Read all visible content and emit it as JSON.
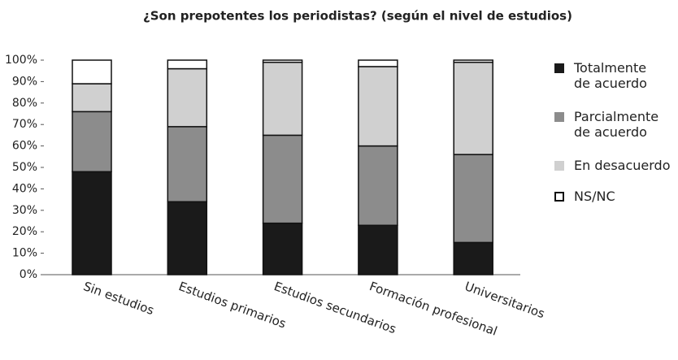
{
  "chart_data": {
    "type": "stacked_bar",
    "title": "¿Son prepotentes los periodistas? (según el nivel de estudios)",
    "categories": [
      "Sin estudios",
      "Estudios primarios",
      "Estudios secundarios",
      "Formación profesional",
      "Universitarios"
    ],
    "series": [
      {
        "name": "Totalmente\nde acuerdo",
        "color": "#1a1a1a",
        "values": [
          48,
          34,
          24,
          23,
          15
        ]
      },
      {
        "name": "Parcialmente\nde acuerdo",
        "color": "#8c8c8c",
        "values": [
          28,
          35,
          41,
          37,
          41
        ]
      },
      {
        "name": "En desacuerdo",
        "color": "#d0d0d0",
        "values": [
          13,
          27,
          34,
          37,
          43
        ]
      },
      {
        "name": "NS/NC",
        "color": "#ffffff",
        "values": [
          11,
          4,
          1,
          3,
          1
        ]
      }
    ],
    "ylim": [
      0,
      100
    ],
    "yticks": [
      {
        "value": 0,
        "label": "0%"
      },
      {
        "value": 10,
        "label": "10%"
      },
      {
        "value": 20,
        "label": "20%"
      },
      {
        "value": 30,
        "label": "30%"
      },
      {
        "value": 40,
        "label": "40%"
      },
      {
        "value": 50,
        "label": "50%"
      },
      {
        "value": 60,
        "label": "60%"
      },
      {
        "value": 70,
        "label": "70%"
      },
      {
        "value": 80,
        "label": "80%"
      },
      {
        "value": 90,
        "label": "90%"
      },
      {
        "value": 100,
        "label": "100%"
      }
    ]
  }
}
